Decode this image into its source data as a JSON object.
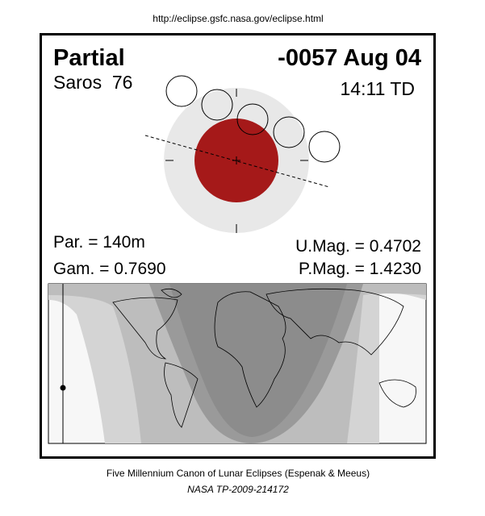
{
  "header": {
    "url": "http://eclipse.gsfc.nasa.gov/eclipse.html"
  },
  "panel": {
    "eclipse_type": "Partial",
    "date": "-0057 Aug 04",
    "saros": "Saros  76",
    "time": "14:11 TD",
    "parameters": {
      "par": "Par. = 140m",
      "gam": "Gam. = 0.7690",
      "umag": "U.Mag. = 0.4702",
      "pmag": "P.Mag. = 1.4230"
    }
  },
  "footer": {
    "title": "Five Millennium Canon of Lunar Eclipses (Espenak & Meeus)",
    "reference": "NASA TP-2009-214172"
  }
}
